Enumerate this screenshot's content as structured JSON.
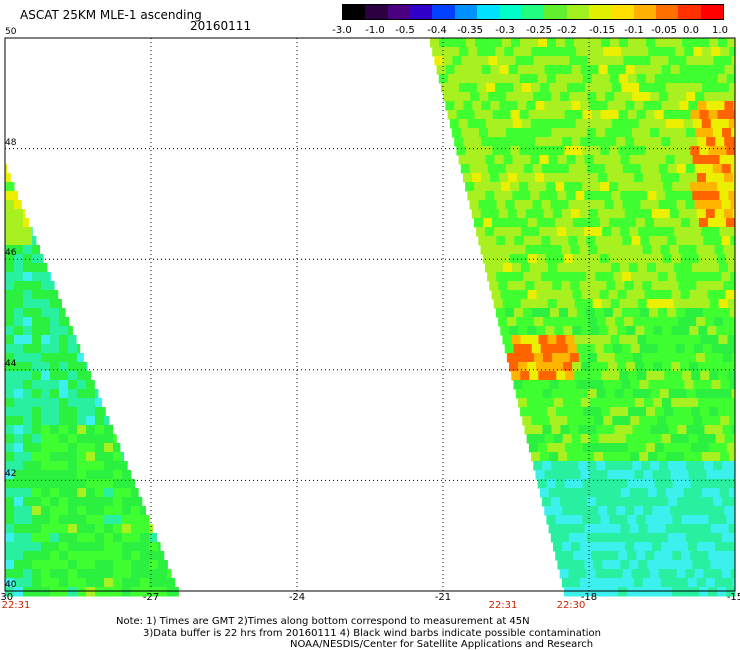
{
  "header": {
    "title": "ASCAT 25KM MLE-1 ascending",
    "date": "20160111"
  },
  "colorbar": {
    "labels": [
      "-3.0",
      "-1.0",
      "-0.5",
      "-0.4",
      "-0.35",
      "-0.3",
      "-0.25",
      "-0.2",
      "-0.15",
      "-0.1",
      "-0.05",
      "0.0",
      "1.0"
    ],
    "colors": [
      "#000000",
      "#2a0040",
      "#4b0080",
      "#3000c8",
      "#0040ff",
      "#0090ff",
      "#00e0ff",
      "#00ffc8",
      "#20ff80",
      "#60f030",
      "#a0f020",
      "#e0f000",
      "#ffe000",
      "#ffb000",
      "#ff7000",
      "#ff3000",
      "#ff0000"
    ]
  },
  "map": {
    "lat_labels": [
      "50",
      "48",
      "46",
      "44",
      "42",
      "40"
    ],
    "lon_labels": [
      "-30",
      "-27",
      "-24",
      "-21",
      "-18",
      "-15"
    ],
    "times": [
      "22:31",
      "22:31",
      "22:30"
    ],
    "legend_colors": {
      "cyan": "#00ffe8",
      "cyan_light": "#3cf0ee",
      "green_cyan": "#28f0a0",
      "green": "#2cf040",
      "green_bright": "#40ff30",
      "yellow_green": "#a8f020",
      "yellow": "#ecf000",
      "orange": "#ffb400",
      "red_orange": "#ff6400"
    }
  },
  "notes": {
    "line1": "Note: 1) Times are GMT 2)Times along bottom correspond to measurement at 45N",
    "line2": "3)Data buffer is 22 hrs from 20160111 4) Black wind barbs indicate possible contamination",
    "line3": "NOAA/NESDIS/Center for Satellite Applications and Research"
  }
}
